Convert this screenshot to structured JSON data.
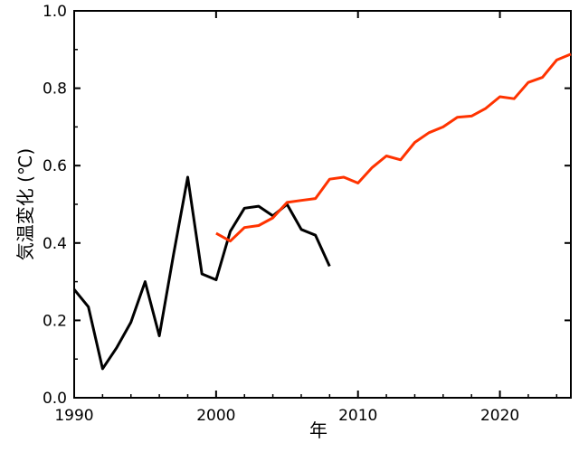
{
  "chart_data": {
    "type": "line",
    "title": "",
    "xlabel": "年",
    "ylabel": "気温変化 (℃)",
    "xlim": [
      1990,
      2025
    ],
    "ylim": [
      0.0,
      1.0
    ],
    "xticks": [
      1990,
      2000,
      2010,
      2020
    ],
    "yticks": [
      "0.0",
      "0.2",
      "0.4",
      "0.6",
      "0.8",
      "1.0"
    ],
    "grid": false,
    "legend": "none",
    "series": [
      {
        "color": "#000000",
        "x": [
          1990,
          1991,
          1992,
          1993,
          1994,
          1995,
          1996,
          1997,
          1998,
          1999,
          2000,
          2001,
          2002,
          2003,
          2004,
          2005,
          2006,
          2007,
          2008
        ],
        "y": [
          0.28,
          0.235,
          0.075,
          0.13,
          0.195,
          0.3,
          0.16,
          0.37,
          0.57,
          0.32,
          0.305,
          0.43,
          0.49,
          0.495,
          0.47,
          0.5,
          0.435,
          0.42,
          0.34
        ]
      },
      {
        "color": "#ff3300",
        "x": [
          2000,
          2001,
          2002,
          2003,
          2004,
          2005,
          2006,
          2007,
          2008,
          2009,
          2010,
          2011,
          2012,
          2013,
          2014,
          2015,
          2016,
          2017,
          2018,
          2019,
          2020,
          2021,
          2022,
          2023,
          2024,
          2025
        ],
        "y": [
          0.425,
          0.405,
          0.44,
          0.445,
          0.465,
          0.505,
          0.51,
          0.515,
          0.565,
          0.57,
          0.555,
          0.595,
          0.625,
          0.615,
          0.66,
          0.685,
          0.7,
          0.725,
          0.728,
          0.748,
          0.778,
          0.773,
          0.815,
          0.828,
          0.873,
          0.888
        ]
      }
    ]
  }
}
